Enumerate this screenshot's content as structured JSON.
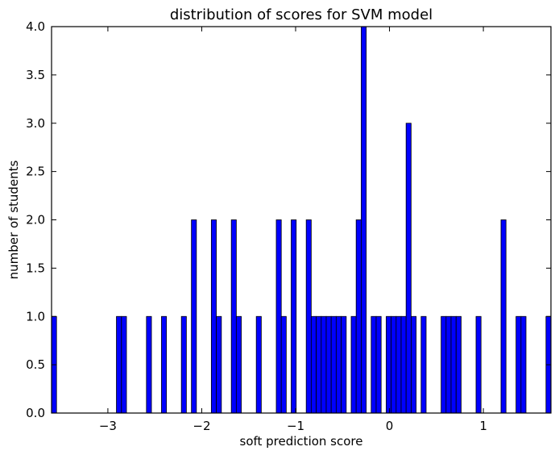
{
  "chart_data": {
    "type": "bar",
    "title": "distribution of scores for SVM model",
    "xlabel": "soft prediction score",
    "ylabel": "number of students",
    "xlim": [
      -3.6,
      1.72
    ],
    "ylim": [
      0,
      4.0
    ],
    "bin_width": 0.0532,
    "x_ticks": [
      -3,
      -2,
      -1,
      0,
      1
    ],
    "x_tick_labels": [
      "−3",
      "−2",
      "−1",
      "0",
      "1"
    ],
    "y_ticks": [
      0,
      0.5,
      1.0,
      1.5,
      2.0,
      2.5,
      3.0,
      3.5,
      4.0
    ],
    "y_tick_labels": [
      "0.0",
      "0.5",
      "1.0",
      "1.5",
      "2.0",
      "2.5",
      "3.0",
      "3.5",
      "4.0"
    ],
    "grid": false,
    "legend": "none",
    "bar_color": "#0000ff",
    "edge_color": "#000000",
    "bin_starts": [
      -3.6,
      -2.909,
      -2.855,
      -2.589,
      -2.429,
      -2.217,
      -2.11,
      -1.898,
      -1.844,
      -1.685,
      -1.632,
      -1.419,
      -1.206,
      -1.153,
      -1.047,
      -0.887,
      -0.834,
      -0.78,
      -0.727,
      -0.674,
      -0.621,
      -0.568,
      -0.514,
      -0.408,
      -0.355,
      -0.301,
      -0.195,
      -0.142,
      -0.035,
      0.018,
      0.071,
      0.124,
      0.177,
      0.231,
      0.337,
      0.55,
      0.603,
      0.656,
      0.71,
      0.922,
      1.188,
      1.348,
      1.401,
      1.667
    ],
    "counts": [
      1,
      1,
      1,
      1,
      1,
      1,
      2,
      2,
      1,
      2,
      1,
      1,
      2,
      1,
      2,
      2,
      1,
      1,
      1,
      1,
      1,
      1,
      1,
      1,
      2,
      4,
      1,
      1,
      1,
      1,
      1,
      1,
      3,
      1,
      1,
      1,
      1,
      1,
      1,
      1,
      2,
      1,
      1,
      1
    ]
  }
}
